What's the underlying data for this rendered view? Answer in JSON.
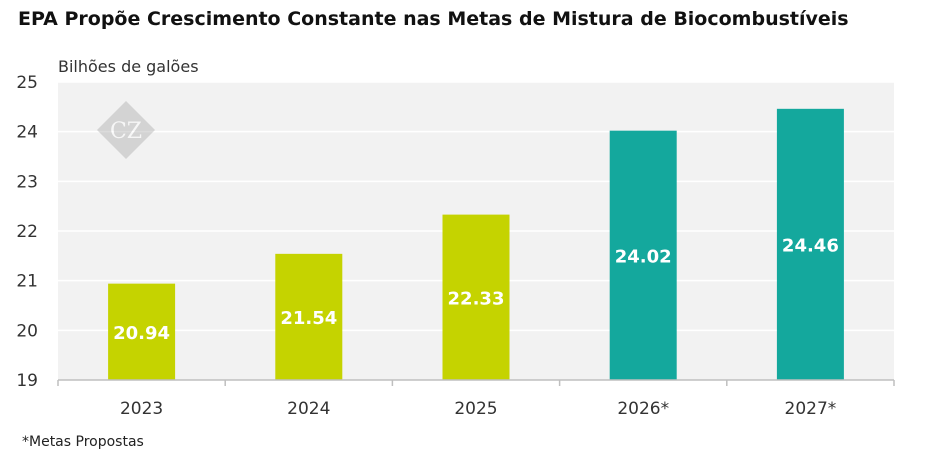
{
  "header": {
    "title": "EPA Propõe Crescimento Constante nas Metas de Mistura de Biocombustíveis"
  },
  "axis": {
    "ylabel": "Bilhões de galões"
  },
  "footnote": "*Metas Propostas",
  "logo": {
    "text": "CZ"
  },
  "colors": {
    "current": "#c5d300",
    "proposed": "#14a89d",
    "plot_background": "#f2f2f2",
    "gridline": "#ffffff",
    "axis_line": "#bfbfbf"
  },
  "chart_data": {
    "type": "bar",
    "title": "EPA Propõe Crescimento Constante nas Metas de Mistura de Biocombustíveis",
    "xlabel": "",
    "ylabel": "Bilhões de galões",
    "categories": [
      "2023",
      "2024",
      "2025",
      "2026*",
      "2027*"
    ],
    "values": [
      20.94,
      21.54,
      22.33,
      24.02,
      24.46
    ],
    "value_labels": [
      "20.94",
      "21.54",
      "22.33",
      "24.02",
      "24.46"
    ],
    "bar_colors": [
      "#c5d300",
      "#c5d300",
      "#c5d300",
      "#14a89d",
      "#14a89d"
    ],
    "ylim": [
      19,
      25
    ],
    "yticks": [
      "19",
      "20",
      "21",
      "22",
      "23",
      "24",
      "25"
    ],
    "grid": true,
    "legend": "none"
  }
}
